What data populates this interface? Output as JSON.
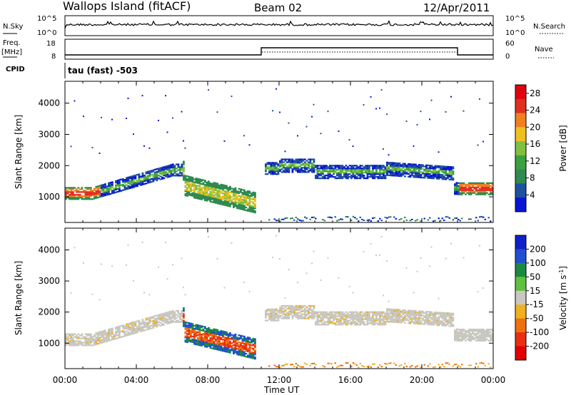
{
  "header": {
    "title": "Wallops Island (fitACF)",
    "beam": "Beam 02",
    "date": "12/Apr/2011"
  },
  "panels": {
    "nsky": {
      "label": "N.Sky",
      "ticks": [
        "10^5",
        "10^0"
      ],
      "right_label": "N.Search",
      "right_ticks": [
        "10^5",
        "10^0"
      ]
    },
    "freq": {
      "label_top": "Freq.",
      "label_bottom": "[MHz]",
      "ticks": [
        "18",
        "8"
      ],
      "right_label": "Nave",
      "right_ticks": [
        "60",
        "0"
      ]
    },
    "cpid": {
      "label": "CPID",
      "value": "tau (fast) -503"
    }
  },
  "colors": {
    "power": [
      "#0a14d2",
      "#1e50a0",
      "#2e8a50",
      "#3aa040",
      "#80c040",
      "#f0c020",
      "#f08020",
      "#e03020",
      "#e00010"
    ],
    "velocity": [
      "#1020c8",
      "#2050d0",
      "#1a8a40",
      "#60c040",
      "#c8c8c0",
      "#f0b020",
      "#f07010",
      "#e83010",
      "#e00000"
    ]
  },
  "chart_data": [
    {
      "type": "line",
      "title": "N.Sky / N.Search",
      "x_range": [
        "00:00",
        "00:00"
      ],
      "y_scale": "log",
      "ylim": [
        1,
        100000
      ]
    },
    {
      "type": "line",
      "title": "Freq. [MHz] / Nave",
      "series": [
        {
          "name": "Freq.",
          "x": [
            "00:00",
            "11:00",
            "11:00",
            "22:00",
            "22:00",
            "24:00"
          ],
          "values": [
            8,
            8,
            13,
            13,
            8,
            8
          ]
        },
        {
          "name": "Nave",
          "x": [
            "00:00",
            "11:00",
            "11:00",
            "22:00",
            "22:00",
            "24:00"
          ],
          "values": [
            6,
            6,
            18,
            18,
            6,
            6
          ]
        }
      ],
      "ylim": [
        8,
        18
      ],
      "y2lim": [
        0,
        60
      ]
    },
    {
      "type": "heatmap",
      "title": "Power [dB]",
      "ylabel": "Slant Range [km]",
      "xlabel": "Time UT",
      "x_ticks": [
        "00:00",
        "04:00",
        "08:00",
        "12:00",
        "16:00",
        "20:00",
        "00:00"
      ],
      "y_ticks": [
        1000,
        2000,
        3000,
        4000
      ],
      "ylim": [
        180,
        4700
      ],
      "colorbar_label": "Power [dB]",
      "colorbar_ticks": [
        4,
        8,
        12,
        16,
        20,
        24,
        28
      ],
      "colorbar_range": [
        0,
        30
      ]
    },
    {
      "type": "heatmap",
      "title": "Velocity [m s^-1]",
      "ylabel": "Slant Range [km]",
      "xlabel": "Time UT",
      "x_ticks": [
        "00:00",
        "04:00",
        "08:00",
        "12:00",
        "16:00",
        "20:00",
        "00:00"
      ],
      "y_ticks": [
        1000,
        2000,
        3000,
        4000
      ],
      "ylim": [
        180,
        4700
      ],
      "colorbar_label": "Velocity",
      "colorbar_unit": "[m s",
      "colorbar_unit_exp": "-1",
      "colorbar_unit_close": "]",
      "colorbar_ticks": [
        200,
        100,
        50,
        15,
        -15,
        -50,
        -100,
        -200
      ]
    }
  ],
  "axes": {
    "ylabel": "Slant Range [km]",
    "xlabel": "Time UT",
    "x_ticks": [
      "00:00",
      "04:00",
      "08:00",
      "12:00",
      "16:00",
      "20:00",
      "00:00"
    ],
    "y_ticks": [
      "1000",
      "2000",
      "3000",
      "4000"
    ]
  }
}
